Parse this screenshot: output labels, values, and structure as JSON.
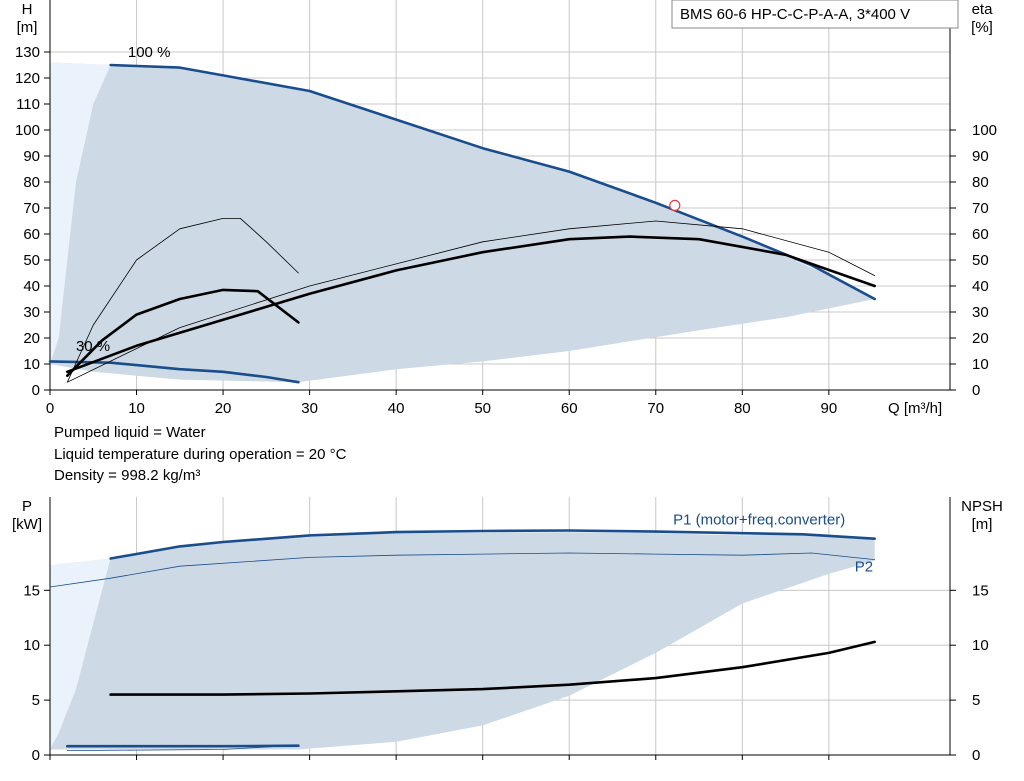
{
  "chart_data": [
    {
      "type": "line",
      "title": "BMS 60-6 HP-C-C-P-A-A, 3*400 V",
      "xlabel": "Q [m³/h]",
      "ylabel_left": "H\n[m]",
      "ylabel_right": "eta\n[%]",
      "xlim": [
        0,
        104
      ],
      "ylim": [
        0,
        150
      ],
      "x_ticks": [
        0,
        10,
        20,
        30,
        40,
        50,
        60,
        70,
        80,
        90
      ],
      "y_ticks_left": [
        0,
        10,
        20,
        30,
        40,
        50,
        60,
        70,
        80,
        90,
        100,
        110,
        120,
        130
      ],
      "y_ticks_right": [
        0,
        10,
        20,
        30,
        40,
        50,
        60,
        70,
        80,
        90,
        100
      ],
      "grid": true,
      "curve_labels": [
        {
          "text": "100 %",
          "x": 9,
          "y": 128
        },
        {
          "text": "30 %",
          "x": 3,
          "y": 15
        }
      ],
      "operating_area": {
        "upper": [
          [
            0,
            126
          ],
          [
            7,
            125
          ],
          [
            15,
            124
          ],
          [
            20,
            121
          ],
          [
            30,
            115
          ],
          [
            40,
            104
          ],
          [
            50,
            93
          ],
          [
            60,
            84
          ],
          [
            70,
            72
          ],
          [
            80,
            59
          ],
          [
            90,
            44
          ],
          [
            95.3,
            35
          ]
        ],
        "lower": [
          [
            95.3,
            35
          ],
          [
            85,
            28
          ],
          [
            75,
            23
          ],
          [
            60,
            15
          ],
          [
            50,
            11
          ],
          [
            40,
            8
          ],
          [
            28.7,
            3
          ],
          [
            15,
            4
          ],
          [
            5,
            7
          ],
          [
            0,
            10
          ]
        ],
        "edge_boundary": [
          [
            0,
            126
          ],
          [
            7,
            125
          ],
          [
            5,
            110
          ],
          [
            3,
            80
          ],
          [
            2,
            50
          ],
          [
            1,
            20
          ],
          [
            0,
            10
          ]
        ]
      },
      "series": [
        {
          "role": "H",
          "values": [
            [
              7,
              125
            ],
            [
              15,
              124
            ],
            [
              20,
              121
            ],
            [
              30,
              115
            ],
            [
              40,
              104
            ],
            [
              50,
              93
            ],
            [
              60,
              84
            ],
            [
              70,
              72
            ],
            [
              80,
              59
            ],
            [
              88,
              48
            ],
            [
              95.3,
              35
            ]
          ]
        },
        {
          "role": "H",
          "values": [
            [
              0,
              11
            ],
            [
              7,
              10.5
            ],
            [
              15,
              8
            ],
            [
              20,
              7
            ],
            [
              25,
              5
            ],
            [
              28.7,
              3
            ]
          ]
        },
        {
          "role": "eta",
          "values": [
            [
              2,
              7
            ],
            [
              10,
              17
            ],
            [
              20,
              27
            ],
            [
              30,
              37
            ],
            [
              40,
              46
            ],
            [
              50,
              53
            ],
            [
              60,
              58
            ],
            [
              67,
              59
            ],
            [
              75,
              58
            ],
            [
              85,
              52
            ],
            [
              95.3,
              40
            ]
          ]
        },
        {
          "role": "eta",
          "values": [
            [
              2,
              5.5
            ],
            [
              6,
              19
            ],
            [
              10,
              29
            ],
            [
              15,
              35
            ],
            [
              20,
              38.5
            ],
            [
              24,
              38
            ],
            [
              28.7,
              26
            ]
          ]
        },
        {
          "role": "eta",
          "values": [
            [
              2,
              3
            ],
            [
              15,
              24
            ],
            [
              30,
              40
            ],
            [
              50,
              57
            ],
            [
              60,
              62
            ],
            [
              70,
              65
            ],
            [
              80,
              62
            ],
            [
              90,
              53
            ],
            [
              95.3,
              44
            ]
          ]
        },
        {
          "role": "eta",
          "values": [
            [
              2,
              3
            ],
            [
              5,
              25
            ],
            [
              10,
              50
            ],
            [
              15,
              62
            ],
            [
              20,
              66
            ],
            [
              22,
              66
            ],
            [
              25,
              57
            ],
            [
              28.7,
              45
            ]
          ]
        }
      ],
      "duty_point": {
        "x": 72.2,
        "y": 71
      }
    },
    {
      "type": "line",
      "ylabel_left": "P\n[kW]",
      "ylabel_right": "NPSH\n[m]",
      "xlim": [
        0,
        104
      ],
      "ylim": [
        0,
        23.5
      ],
      "y_ticks_left": [
        0,
        5,
        10,
        15
      ],
      "y_ticks_right": [
        0,
        5,
        10,
        15
      ],
      "grid": true,
      "operating_area": {
        "upper": [
          [
            0,
            17.3
          ],
          [
            7,
            17.9
          ],
          [
            20,
            19.5
          ],
          [
            40,
            20.2
          ],
          [
            60,
            20.3
          ],
          [
            70,
            20.2
          ],
          [
            80,
            20.0
          ],
          [
            87,
            20.1
          ],
          [
            95.3,
            19.7
          ]
        ],
        "lower": [
          [
            95.3,
            17.7
          ],
          [
            90,
            16.5
          ],
          [
            80,
            13.8
          ],
          [
            70,
            9.3
          ],
          [
            60,
            5.4
          ],
          [
            50,
            2.7
          ],
          [
            40,
            1.2
          ],
          [
            28.7,
            0.5
          ],
          [
            10,
            0.5
          ],
          [
            0,
            0.5
          ]
        ],
        "edge_boundary": [
          [
            0,
            17.3
          ],
          [
            7,
            17.9
          ],
          [
            5,
            12
          ],
          [
            3,
            6
          ],
          [
            1,
            2
          ],
          [
            0,
            0.5
          ]
        ]
      },
      "series": [
        {
          "role": "P1",
          "name": "P1 (motor+freq.converter)",
          "values": [
            [
              7,
              17.9
            ],
            [
              15,
              19.0
            ],
            [
              20,
              19.4
            ],
            [
              30,
              20.0
            ],
            [
              40,
              20.3
            ],
            [
              50,
              20.4
            ],
            [
              60,
              20.45
            ],
            [
              70,
              20.35
            ],
            [
              80,
              20.2
            ],
            [
              87,
              20.1
            ],
            [
              95.3,
              19.7
            ]
          ]
        },
        {
          "role": "P2",
          "name": "P2",
          "values": [
            [
              0,
              15.3
            ],
            [
              7,
              16.1
            ],
            [
              15,
              17.2
            ],
            [
              30,
              18.0
            ],
            [
              40,
              18.2
            ],
            [
              50,
              18.3
            ],
            [
              60,
              18.4
            ],
            [
              70,
              18.3
            ],
            [
              80,
              18.2
            ],
            [
              88,
              18.4
            ],
            [
              95.3,
              17.8
            ]
          ]
        },
        {
          "role": "P1",
          "values": [
            [
              2,
              0.8
            ],
            [
              10,
              0.8
            ],
            [
              20,
              0.8
            ],
            [
              28.7,
              0.85
            ]
          ]
        },
        {
          "role": "P2",
          "values": [
            [
              2,
              0.4
            ],
            [
              10,
              0.45
            ],
            [
              20,
              0.5
            ],
            [
              28.7,
              0.9
            ]
          ]
        },
        {
          "role": "NPSH",
          "values": [
            [
              7,
              5.5
            ],
            [
              20,
              5.5
            ],
            [
              30,
              5.6
            ],
            [
              40,
              5.8
            ],
            [
              50,
              6.0
            ],
            [
              60,
              6.4
            ],
            [
              70,
              7.0
            ],
            [
              80,
              8.0
            ],
            [
              90,
              9.3
            ],
            [
              95.3,
              10.3
            ]
          ]
        }
      ],
      "series_labels": [
        {
          "text": "P1 (motor+freq.converter)",
          "x": 72,
          "y": 21.0
        },
        {
          "text": "P2",
          "x": 93,
          "y": 16.7
        }
      ]
    }
  ],
  "annotations": [
    "Pumped liquid = Water",
    "Liquid temperature during operation = 20 °C",
    "Density = 998.2 kg/m³"
  ],
  "colors": {
    "area": "#cdd9e4",
    "area_edge": "#eaf3fc",
    "blue_curve": "#1a4d8c",
    "black_curve": "#000000",
    "grid": "#c8c8c8",
    "duty_point": "#e04040"
  }
}
